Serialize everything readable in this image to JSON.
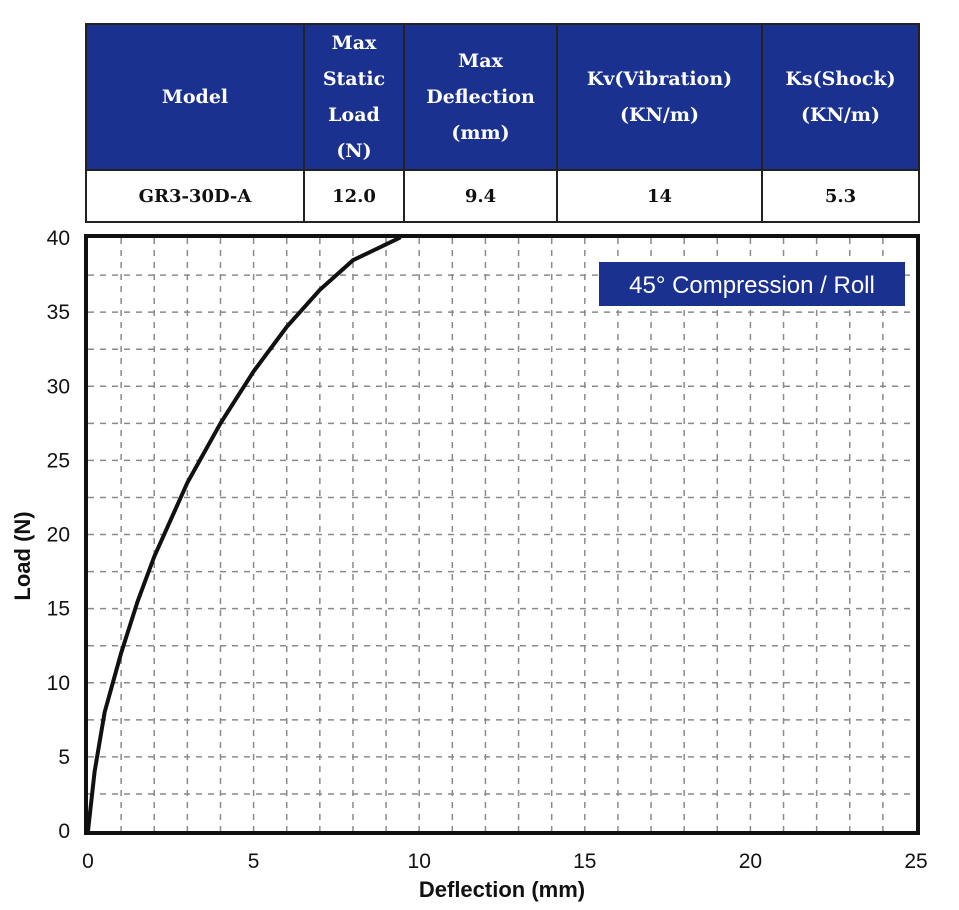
{
  "table": {
    "headers": [
      [
        "Model"
      ],
      [
        "Max",
        "Static",
        "Load",
        "(N)"
      ],
      [
        "Max",
        "Deflection",
        "(mm)"
      ],
      [
        "Kv(Vibration)",
        "(KN/m)"
      ],
      [
        "Ks(Shock)",
        "(KN/m)"
      ]
    ],
    "row": [
      "GR3-30D-A",
      "12.0",
      "9.4",
      "14",
      "5.3"
    ]
  },
  "colors": {
    "header_bg": "#1b3190",
    "legend_bg": "#1b3190",
    "curve": "#111111",
    "grid": "#8a8a8a"
  },
  "chart_data": {
    "type": "line",
    "title": "45° Compression / Roll",
    "xlabel": "Deflection (mm)",
    "ylabel": "Load (N)",
    "xlim": [
      0,
      25
    ],
    "ylim": [
      0,
      40
    ],
    "xticks": [
      0,
      5,
      10,
      15,
      20,
      25
    ],
    "yticks": [
      0,
      5,
      10,
      15,
      20,
      25,
      30,
      35,
      40
    ],
    "grid": true,
    "series": [
      {
        "name": "45° Compression / Roll",
        "x": [
          0,
          0.2,
          0.5,
          1.0,
          1.5,
          2.0,
          3.0,
          4.0,
          5.0,
          6.0,
          7.0,
          8.0,
          9.4
        ],
        "y": [
          0,
          4.0,
          8.0,
          12.0,
          15.5,
          18.5,
          23.5,
          27.5,
          31.0,
          34.0,
          36.5,
          38.5,
          40.0
        ]
      }
    ]
  }
}
